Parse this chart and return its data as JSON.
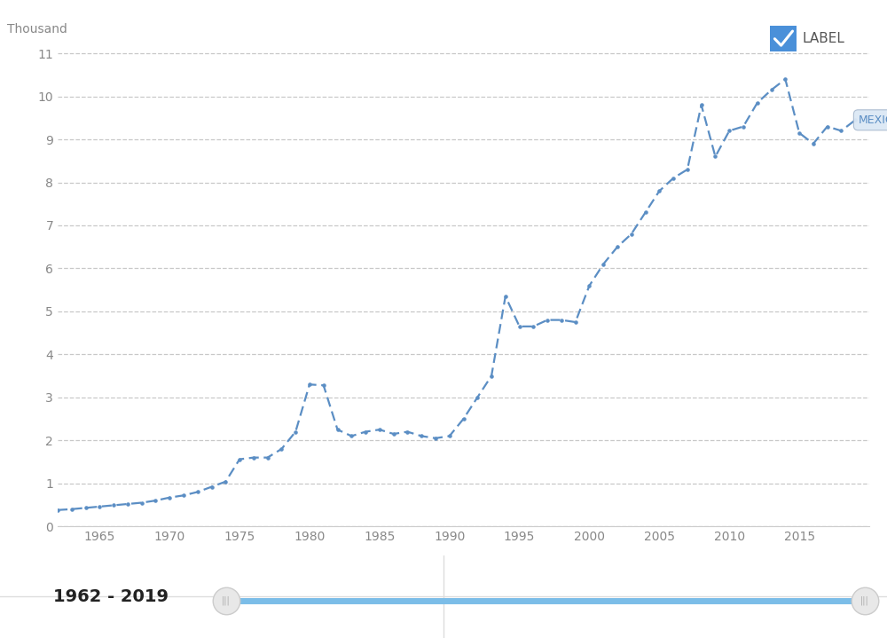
{
  "years": [
    1962,
    1963,
    1964,
    1965,
    1966,
    1967,
    1968,
    1969,
    1970,
    1971,
    1972,
    1973,
    1974,
    1975,
    1976,
    1977,
    1978,
    1979,
    1980,
    1981,
    1982,
    1983,
    1984,
    1985,
    1986,
    1987,
    1988,
    1989,
    1990,
    1991,
    1992,
    1993,
    1994,
    1995,
    1996,
    1997,
    1998,
    1999,
    2000,
    2001,
    2002,
    2003,
    2004,
    2005,
    2006,
    2007,
    2008,
    2009,
    2010,
    2011,
    2012,
    2013,
    2014,
    2015,
    2016,
    2017,
    2018,
    2019
  ],
  "values": [
    0.38,
    0.4,
    0.43,
    0.46,
    0.49,
    0.52,
    0.55,
    0.6,
    0.67,
    0.72,
    0.8,
    0.92,
    1.04,
    1.56,
    1.6,
    1.6,
    1.8,
    2.2,
    3.3,
    3.28,
    2.25,
    2.1,
    2.2,
    2.25,
    2.15,
    2.2,
    2.1,
    2.05,
    2.1,
    2.5,
    3.0,
    3.5,
    5.35,
    4.65,
    4.65,
    4.8,
    4.8,
    4.75,
    5.6,
    6.1,
    6.5,
    6.8,
    7.3,
    7.8,
    8.1,
    8.3,
    9.8,
    8.6,
    9.2,
    9.3,
    9.85,
    10.15,
    10.4,
    9.15,
    8.9,
    9.3,
    9.2,
    9.45
  ],
  "line_color": "#5b8ec4",
  "label_text": "MEXICO",
  "ylabel": "Thousand",
  "ylim": [
    0,
    11.5
  ],
  "yticks": [
    0,
    1,
    2,
    3,
    4,
    5,
    6,
    7,
    8,
    9,
    10,
    11
  ],
  "xlim": [
    1962,
    2020
  ],
  "xticks": [
    1965,
    1970,
    1975,
    1980,
    1985,
    1990,
    1995,
    2000,
    2005,
    2010,
    2015
  ],
  "grid_color": "#c8c8c8",
  "bg_color": "#ffffff",
  "checkbox_color": "#4a90d9",
  "label_legend": "LABEL",
  "footer_text": "1962 - 2019",
  "footer_bg": "#f2f2f2",
  "top_bar_color": "#5b8ec4"
}
